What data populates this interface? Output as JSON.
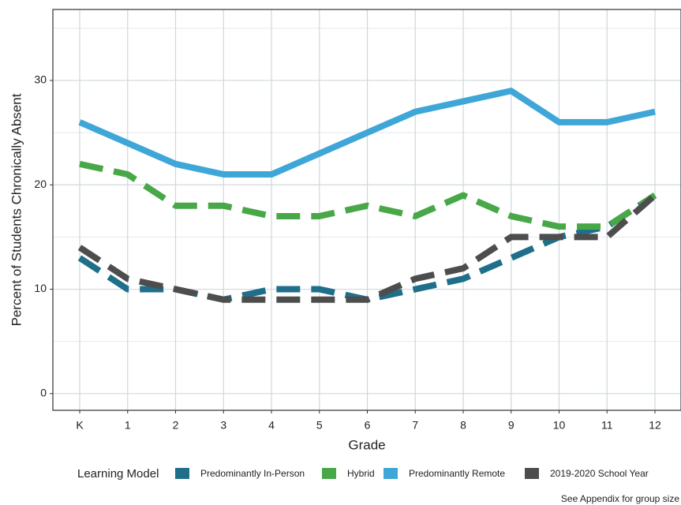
{
  "chart_data": {
    "type": "line",
    "x_label": "Grade",
    "y_label": "Percent of Students Chronically Absent",
    "categories": [
      "K",
      "1",
      "2",
      "3",
      "4",
      "5",
      "6",
      "7",
      "8",
      "9",
      "10",
      "11",
      "12"
    ],
    "series": [
      {
        "name": "Predominantly In-Person",
        "color": "#1f6f8b",
        "linestyle": "dashed",
        "values": [
          13,
          10,
          10,
          9,
          10,
          10,
          9,
          10,
          11,
          13,
          15,
          16,
          19
        ]
      },
      {
        "name": "Hybrid",
        "color": "#48a848",
        "linestyle": "dashed",
        "values": [
          22,
          21,
          18,
          18,
          17,
          17,
          18,
          17,
          19,
          17,
          16,
          16,
          19
        ]
      },
      {
        "name": "Predominantly Remote",
        "color": "#3fa6d8",
        "linestyle": "solid",
        "values": [
          26,
          24,
          22,
          21,
          21,
          23,
          25,
          27,
          28,
          29,
          26,
          26,
          27
        ]
      },
      {
        "name": "2019-2020 School Year",
        "color": "#4d4d4d",
        "linestyle": "dashed",
        "values": [
          14,
          11,
          10,
          9,
          9,
          9,
          9,
          11,
          12,
          15,
          15,
          15,
          19
        ]
      }
    ],
    "ylim": [
      -1.6,
      36.8
    ],
    "yticks": [
      0,
      10,
      20,
      30
    ],
    "minor_yticks": [
      5,
      15,
      25,
      35
    ],
    "grid": true,
    "legend_title": "Learning Model",
    "legend_position": "bottom",
    "caption": "See Appendix for group size"
  }
}
